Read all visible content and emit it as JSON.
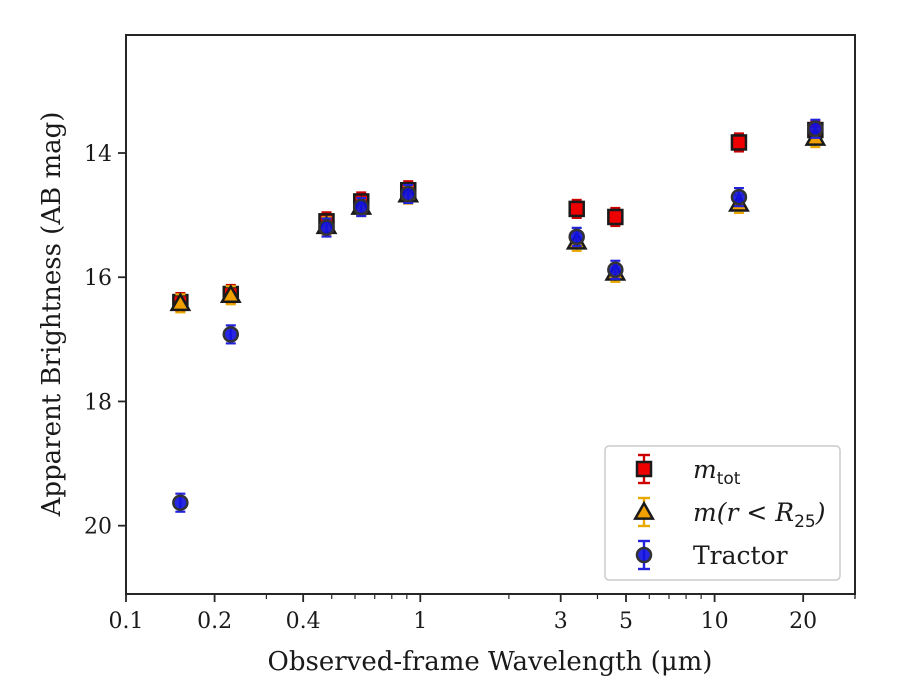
{
  "chart_data": {
    "type": "scatter",
    "xlabel": "Observed-frame Wavelength (μm)",
    "ylabel": "Apparent Brightness (AB mag)",
    "xscale": "log",
    "xlim": [
      0.1,
      30
    ],
    "ylim": [
      21.1,
      12.1
    ],
    "y_inverted": true,
    "x_ticks": [
      {
        "value": 0.1,
        "label": "0.1"
      },
      {
        "value": 0.2,
        "label": "0.2"
      },
      {
        "value": 0.4,
        "label": "0.4"
      },
      {
        "value": 1,
        "label": "1"
      },
      {
        "value": 3,
        "label": "3"
      },
      {
        "value": 5,
        "label": "5"
      },
      {
        "value": 10,
        "label": "10"
      },
      {
        "value": 20,
        "label": "20"
      }
    ],
    "y_ticks": [
      {
        "value": 14,
        "label": "14"
      },
      {
        "value": 16,
        "label": "16"
      },
      {
        "value": 18,
        "label": "18"
      },
      {
        "value": 20,
        "label": "20"
      }
    ],
    "grid": false,
    "legend_position": "bottom-right",
    "series": [
      {
        "name": "m_tot",
        "legend": {
          "main": "m",
          "sub": "tot"
        },
        "marker": "square",
        "color": "#ee0000",
        "errbar_color": "#cc0000",
        "x": [
          0.153,
          0.227,
          0.48,
          0.63,
          0.91,
          3.4,
          4.6,
          12.1,
          22.0
        ],
        "y": [
          16.4,
          16.27,
          15.1,
          14.78,
          14.6,
          14.9,
          15.03,
          13.83,
          13.63
        ]
      },
      {
        "name": "m(r < R25)",
        "legend": {
          "main": "m(r < R",
          "sub": "25",
          "close": ")"
        },
        "marker": "triangle",
        "color": "#f0a000",
        "errbar_color": "#e8a800",
        "x": [
          0.153,
          0.227,
          0.48,
          0.63,
          0.91,
          3.4,
          4.6,
          12.1,
          22.0
        ],
        "y": [
          16.42,
          16.29,
          15.18,
          14.87,
          14.67,
          15.43,
          15.93,
          14.82,
          13.76
        ]
      },
      {
        "name": "Tractor",
        "legend": {
          "main": "Tractor"
        },
        "marker": "circle",
        "color": "#1010e0",
        "errbar_color": "#2222dd",
        "x": [
          0.153,
          0.227,
          0.48,
          0.63,
          0.91,
          3.4,
          4.6,
          12.1,
          22.0
        ],
        "y": [
          19.63,
          16.92,
          15.2,
          14.87,
          14.66,
          15.35,
          15.88,
          14.71,
          13.61
        ]
      }
    ]
  }
}
